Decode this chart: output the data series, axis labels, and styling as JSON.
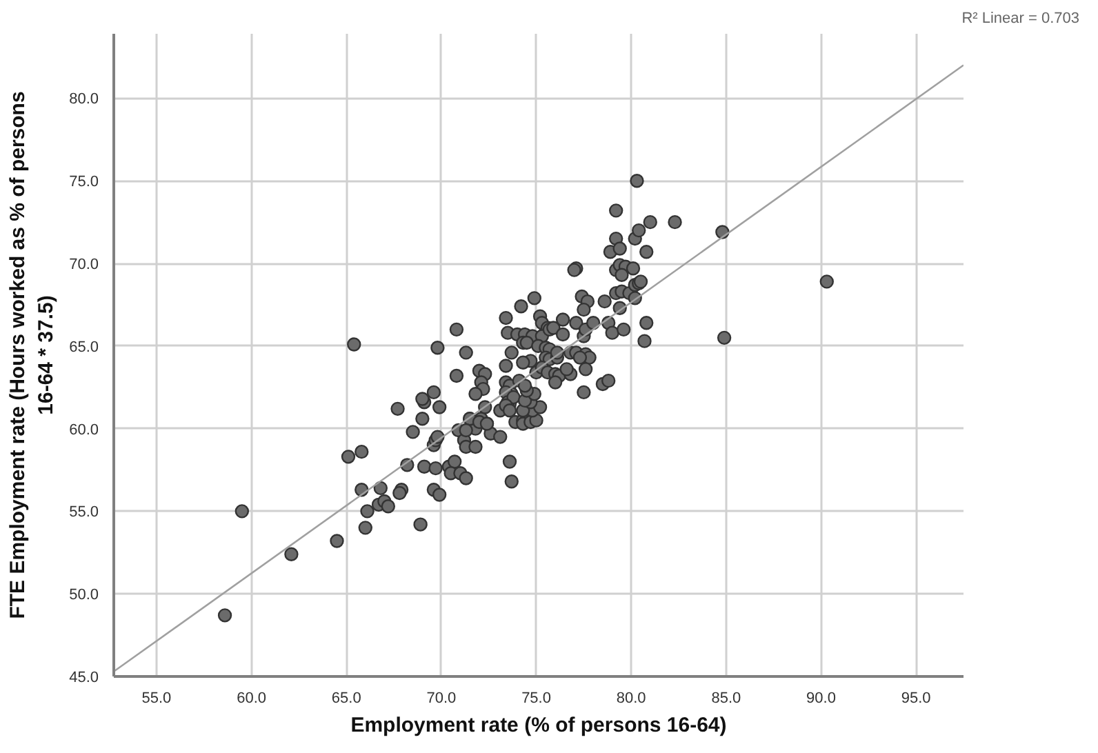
{
  "chart_data": {
    "type": "scatter",
    "xlabel": "Employment rate (% of persons 16-64)",
    "ylabel": "FTE Employment rate (Hours worked as % of persons 16-64 * 37.5)",
    "xlim": [
      52.75,
      97.5
    ],
    "ylim": [
      45,
      83.9
    ],
    "xticks": [
      {
        "value": 55,
        "label": "55.0"
      },
      {
        "value": 60,
        "label": "60.0"
      },
      {
        "value": 65,
        "label": "65.0"
      },
      {
        "value": 70,
        "label": "70.0"
      },
      {
        "value": 75,
        "label": "75.0"
      },
      {
        "value": 80,
        "label": "80.0"
      },
      {
        "value": 85,
        "label": "85.0"
      },
      {
        "value": 90,
        "label": "90.0"
      },
      {
        "value": 95,
        "label": "95.0"
      }
    ],
    "yticks": [
      {
        "value": 45,
        "label": "45.0"
      },
      {
        "value": 50,
        "label": "50.0"
      },
      {
        "value": 55,
        "label": "55.0"
      },
      {
        "value": 60,
        "label": "60.0"
      },
      {
        "value": 65,
        "label": "65.0"
      },
      {
        "value": 70,
        "label": "70.0"
      },
      {
        "value": 75,
        "label": "75.0"
      },
      {
        "value": 80,
        "label": "80.0"
      }
    ],
    "grid": true,
    "annotations": [
      "R² Linear = 0.703"
    ],
    "series": [
      {
        "marker": "circle",
        "color": "#6b6b6b",
        "x": [
          58.6,
          59.5,
          62.1,
          64.5,
          65.1,
          65.8,
          65.8,
          66.8,
          66.1,
          66.0,
          66.7,
          67.0,
          67.2,
          67.9,
          67.8,
          68.9,
          68.2,
          68.5,
          69.1,
          69.7,
          69.6,
          69.9,
          67.7,
          69.0,
          69.9,
          69.6,
          69.7,
          69.8,
          70.4,
          70.7,
          70.5,
          71.0,
          71.3,
          70.9,
          71.2,
          71.3,
          71.8,
          71.8,
          71.5,
          72.1,
          72.4,
          72.6,
          73.1,
          73.1,
          73.6,
          73.7,
          69.1,
          73.6,
          65.4,
          69.6,
          69.0,
          69.8,
          70.8,
          70.8,
          71.3,
          72.0,
          72.3,
          72.1,
          72.2,
          71.8,
          72.3,
          71.5,
          72.0,
          72.4,
          71.3,
          73.4,
          73.5,
          73.4,
          73.7,
          73.4,
          73.6,
          73.7,
          73.4,
          73.5,
          73.8,
          73.4,
          73.6,
          73.9,
          74.3,
          74.3,
          74.7,
          75.0,
          74.8,
          75.2,
          74.3,
          74.7,
          74.4,
          74.9,
          74.5,
          74.1,
          74.4,
          74.7,
          75.0,
          74.3,
          74.2,
          74.9,
          75.2,
          75.3,
          75.6,
          74.0,
          74.4,
          74.8,
          75.3,
          74.3,
          74.5,
          75.1,
          75.7,
          75.9,
          76.4,
          75.5,
          75.7,
          75.5,
          75.7,
          76.1,
          76.1,
          76.4,
          75.3,
          75.6,
          76.0,
          76.2,
          76.0,
          76.8,
          76.6,
          76.8,
          77.1,
          77.6,
          77.8,
          77.3,
          77.6,
          77.5,
          77.1,
          77.5,
          77.6,
          78.0,
          77.4,
          77.7,
          77.5,
          77.1,
          77.0,
          78.5,
          78.8,
          78.6,
          78.8,
          79.0,
          79.6,
          79.4,
          79.2,
          79.5,
          79.9,
          80.2,
          80.4,
          80.2,
          79.2,
          79.4,
          79.7,
          80.1,
          79.5,
          78.9,
          79.2,
          79.4,
          80.2,
          80.4,
          80.8,
          80.8,
          80.7,
          81.0,
          82.3,
          84.8,
          84.9,
          80.3,
          79.2,
          90.3,
          80.5
        ],
        "values": [
          48.7,
          55.0,
          52.4,
          53.2,
          58.3,
          58.6,
          56.3,
          56.4,
          55.0,
          54.0,
          55.4,
          55.6,
          55.3,
          56.3,
          56.1,
          54.2,
          57.8,
          59.8,
          57.7,
          57.6,
          56.3,
          56.0,
          61.2,
          60.6,
          61.3,
          59.0,
          59.3,
          59.5,
          57.7,
          58.0,
          57.3,
          57.3,
          57.0,
          59.9,
          59.3,
          58.9,
          58.9,
          60.0,
          60.6,
          60.6,
          60.3,
          59.7,
          59.5,
          61.1,
          58.0,
          56.8,
          61.6,
          61.5,
          65.1,
          62.2,
          61.8,
          64.9,
          66.0,
          63.2,
          64.6,
          63.5,
          63.3,
          62.8,
          62.4,
          62.1,
          61.3,
          60.6,
          60.4,
          60.3,
          59.9,
          66.7,
          65.8,
          63.8,
          64.6,
          62.8,
          62.6,
          62.1,
          62.2,
          61.6,
          61.9,
          61.4,
          61.1,
          60.4,
          60.5,
          60.3,
          60.4,
          60.5,
          61.1,
          61.3,
          61.1,
          61.6,
          61.7,
          62.1,
          62.3,
          62.9,
          62.6,
          64.1,
          63.4,
          64.0,
          67.4,
          67.9,
          66.8,
          66.4,
          66.1,
          65.7,
          65.7,
          65.6,
          65.6,
          65.2,
          65.2,
          65.0,
          66.0,
          66.1,
          65.7,
          64.9,
          64.8,
          64.3,
          64.2,
          64.3,
          64.6,
          66.6,
          63.7,
          63.4,
          63.3,
          63.2,
          62.8,
          63.3,
          63.6,
          64.6,
          64.6,
          64.5,
          64.3,
          64.3,
          63.6,
          62.2,
          66.4,
          65.6,
          66.0,
          66.4,
          68.0,
          67.7,
          67.2,
          69.7,
          69.6,
          62.7,
          62.9,
          67.7,
          66.4,
          65.8,
          66.0,
          67.3,
          68.2,
          68.3,
          68.2,
          68.7,
          68.8,
          67.9,
          69.6,
          69.9,
          69.8,
          69.7,
          69.3,
          70.7,
          71.5,
          70.9,
          71.5,
          72.0,
          70.7,
          66.4,
          65.3,
          72.5,
          72.5,
          71.9,
          65.5,
          75.0,
          73.2,
          68.9,
          68.9
        ]
      },
      {
        "type": "line",
        "color": "#a0a0a0",
        "x": [
          52.75,
          97.5
        ],
        "values": [
          45.3,
          82.0
        ]
      }
    ]
  }
}
